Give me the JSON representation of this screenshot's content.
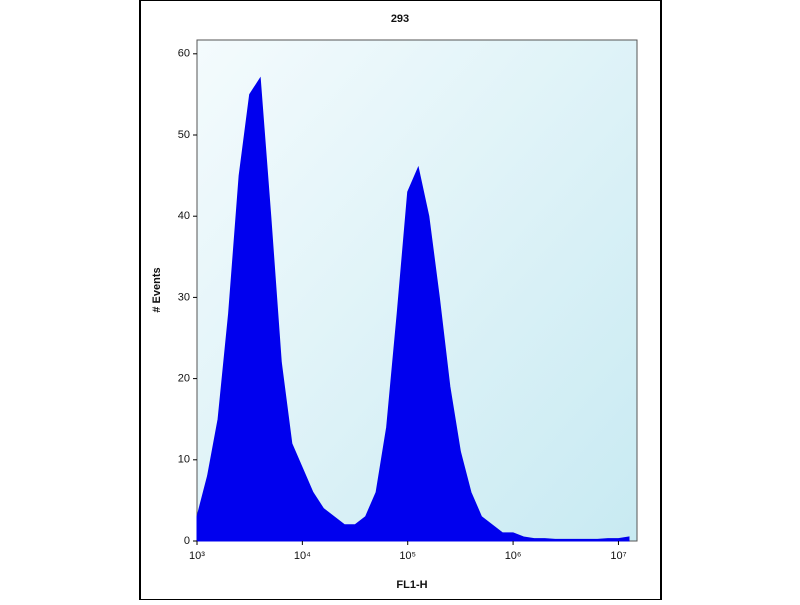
{
  "chart_data": {
    "type": "area",
    "title": "293",
    "x_label": "FL1-H",
    "y_label": "# Events",
    "xscale": "log",
    "color": "#0000ee",
    "x": [
      1000,
      1259,
      1585,
      1995,
      2512,
      3162,
      3981,
      5012,
      6310,
      7943,
      10000,
      12589,
      15849,
      19953,
      25119,
      31623,
      39811,
      50119,
      63096,
      79433,
      100000,
      125893,
      158489,
      199526,
      251189,
      316228,
      398107,
      501187,
      630957,
      794328,
      1000000,
      1258925,
      1584893,
      1995262,
      2511886,
      3162278,
      3981072,
      5011872,
      6309573,
      7943282,
      10000000,
      12589254
    ],
    "values": [
      3,
      8,
      15,
      28,
      45,
      55,
      57,
      40,
      22,
      12,
      9,
      6,
      4,
      3,
      2,
      2,
      3,
      6,
      14,
      28,
      43,
      46,
      40,
      30,
      19,
      11,
      6,
      3,
      2,
      1,
      1,
      0.5,
      0.3,
      0.3,
      0.2,
      0.2,
      0.2,
      0.2,
      0.2,
      0.3,
      0.3,
      0.5
    ],
    "xlim": [
      1000,
      15000000
    ],
    "ylim": [
      0,
      61.7
    ],
    "yticks": [
      0,
      10,
      20,
      30,
      40,
      50,
      60
    ],
    "xticks": [
      {
        "value": 1000,
        "label": "10³"
      },
      {
        "value": 10000,
        "label": "10⁴"
      },
      {
        "value": 100000,
        "label": "10⁵"
      },
      {
        "value": 1000000,
        "label": "10⁶"
      },
      {
        "value": 10000000,
        "label": "10⁷"
      }
    ]
  }
}
